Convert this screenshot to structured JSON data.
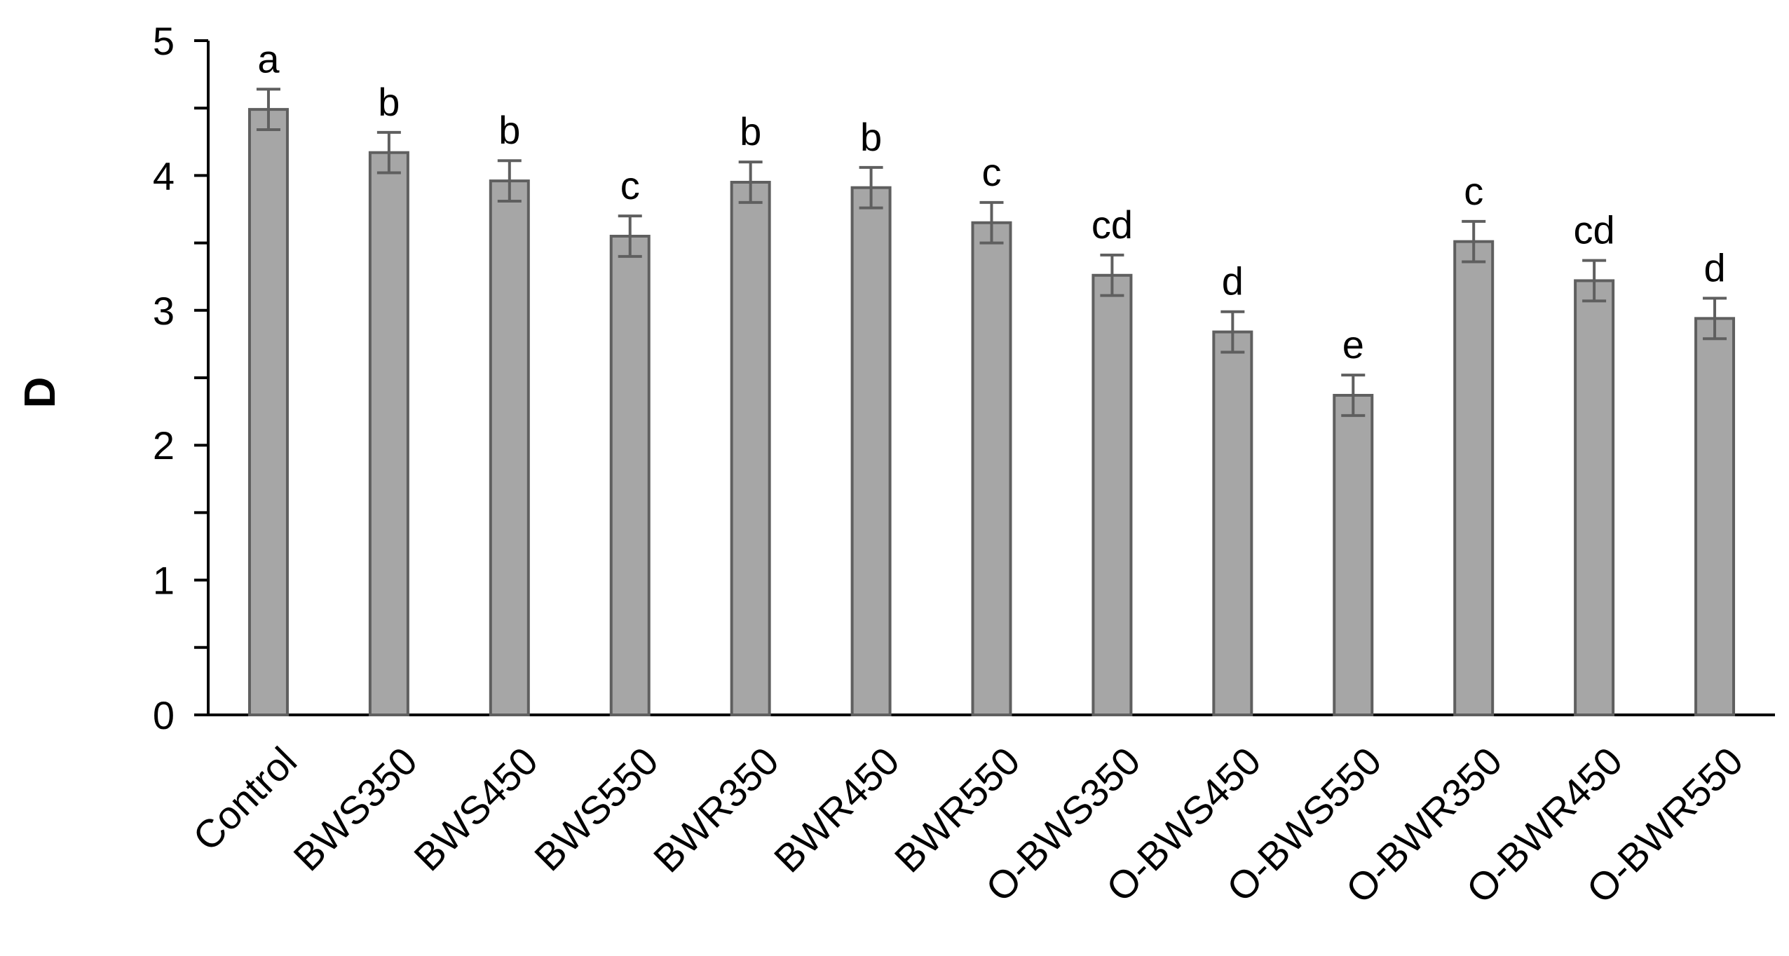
{
  "chart_data": {
    "type": "bar",
    "title": "",
    "xlabel": "",
    "ylabel": "D",
    "ylim": [
      0,
      5
    ],
    "yticks": [
      "0",
      "1",
      "2",
      "3",
      "4",
      "5"
    ],
    "grid": false,
    "legend": "none",
    "categories": [
      "Control",
      "BWS350",
      "BWS450",
      "BWS550",
      "BWR350",
      "BWR450",
      "BWR550",
      "O-BWS350",
      "O-BWS450",
      "O-BWS550",
      "O-BWR350",
      "O-BWR450",
      "O-BWR550"
    ],
    "values": [
      4.49,
      4.17,
      3.96,
      3.55,
      3.95,
      3.91,
      3.65,
      3.26,
      2.84,
      2.37,
      3.51,
      3.22,
      2.94
    ],
    "errors": [
      0.15,
      0.15,
      0.15,
      0.15,
      0.15,
      0.15,
      0.15,
      0.15,
      0.15,
      0.15,
      0.15,
      0.15,
      0.15
    ],
    "significance_letters": [
      "a",
      "b",
      "b",
      "c",
      "b",
      "b",
      "c",
      "cd",
      "d",
      "e",
      "c",
      "cd",
      "d"
    ],
    "colors": {
      "bar_fill": "#a6a6a6",
      "bar_stroke": "#5f5f5f",
      "axis": "#000000"
    }
  }
}
